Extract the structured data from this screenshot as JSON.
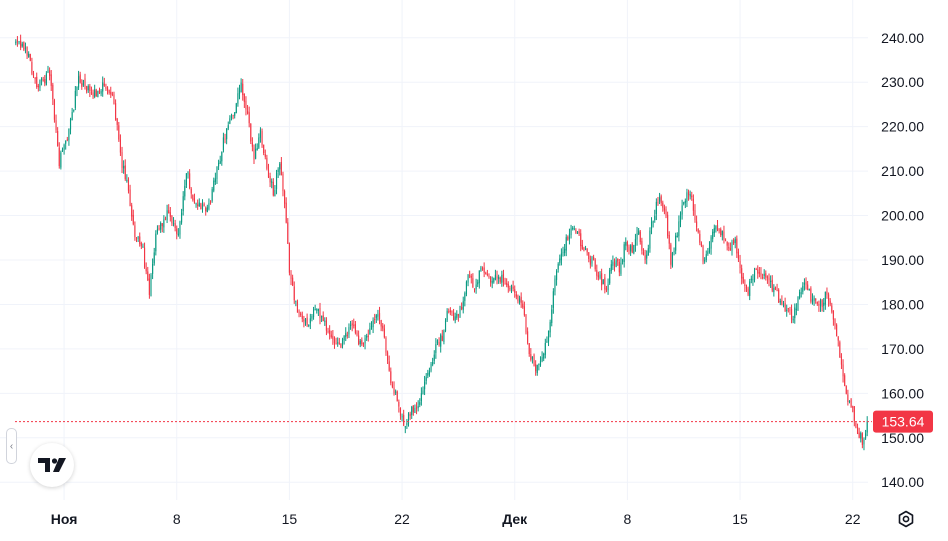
{
  "chart_data": {
    "type": "candlestick",
    "title": "",
    "y_axis": {
      "side": "right",
      "ylim": [
        136,
        244
      ],
      "ticks": [
        "240.00",
        "230.00",
        "220.00",
        "210.00",
        "200.00",
        "190.00",
        "180.00",
        "170.00",
        "160.00",
        "150.00",
        "140.00"
      ]
    },
    "x_axis": {
      "ticks": [
        {
          "label": "Ноя",
          "index": 30,
          "bold": true
        },
        {
          "label": "8",
          "index": 100,
          "bold": false
        },
        {
          "label": "15",
          "index": 170,
          "bold": false
        },
        {
          "label": "22",
          "index": 240,
          "bold": false
        },
        {
          "label": "Дек",
          "index": 310,
          "bold": true
        },
        {
          "label": "8",
          "index": 380,
          "bold": false
        },
        {
          "label": "15",
          "index": 450,
          "bold": false
        },
        {
          "label": "22",
          "index": 520,
          "bold": false
        }
      ]
    },
    "bar_count": 530,
    "close_path": [
      [
        0,
        239
      ],
      [
        8,
        237
      ],
      [
        14,
        229
      ],
      [
        22,
        232
      ],
      [
        28,
        212
      ],
      [
        34,
        219
      ],
      [
        40,
        231
      ],
      [
        48,
        227
      ],
      [
        55,
        229
      ],
      [
        62,
        226
      ],
      [
        66,
        213
      ],
      [
        70,
        207
      ],
      [
        75,
        196
      ],
      [
        80,
        192
      ],
      [
        84,
        182
      ],
      [
        88,
        196
      ],
      [
        95,
        200
      ],
      [
        102,
        196
      ],
      [
        107,
        210
      ],
      [
        112,
        203
      ],
      [
        120,
        201
      ],
      [
        126,
        210
      ],
      [
        132,
        220
      ],
      [
        137,
        224
      ],
      [
        141,
        229
      ],
      [
        145,
        222
      ],
      [
        149,
        213
      ],
      [
        153,
        219
      ],
      [
        157,
        211
      ],
      [
        161,
        205
      ],
      [
        165,
        212
      ],
      [
        168,
        202
      ],
      [
        171,
        188
      ],
      [
        176,
        178
      ],
      [
        182,
        176
      ],
      [
        188,
        179
      ],
      [
        194,
        175
      ],
      [
        200,
        170
      ],
      [
        205,
        172
      ],
      [
        210,
        176
      ],
      [
        215,
        171
      ],
      [
        220,
        173
      ],
      [
        226,
        178
      ],
      [
        230,
        172
      ],
      [
        234,
        163
      ],
      [
        238,
        158
      ],
      [
        242,
        153
      ],
      [
        246,
        156
      ],
      [
        250,
        157
      ],
      [
        254,
        161
      ],
      [
        258,
        166
      ],
      [
        262,
        170
      ],
      [
        266,
        173
      ],
      [
        270,
        179
      ],
      [
        274,
        177
      ],
      [
        278,
        180
      ],
      [
        282,
        187
      ],
      [
        286,
        183
      ],
      [
        290,
        188
      ],
      [
        296,
        185
      ],
      [
        302,
        186
      ],
      [
        308,
        184
      ],
      [
        312,
        182
      ],
      [
        316,
        180
      ],
      [
        320,
        169
      ],
      [
        324,
        166
      ],
      [
        328,
        168
      ],
      [
        332,
        173
      ],
      [
        336,
        185
      ],
      [
        340,
        192
      ],
      [
        344,
        195
      ],
      [
        348,
        198
      ],
      [
        352,
        194
      ],
      [
        356,
        191
      ],
      [
        360,
        189
      ],
      [
        364,
        186
      ],
      [
        368,
        184
      ],
      [
        372,
        190
      ],
      [
        376,
        188
      ],
      [
        380,
        194
      ],
      [
        384,
        192
      ],
      [
        388,
        196
      ],
      [
        392,
        189
      ],
      [
        396,
        198
      ],
      [
        400,
        204
      ],
      [
        404,
        202
      ],
      [
        408,
        190
      ],
      [
        412,
        196
      ],
      [
        416,
        204
      ],
      [
        420,
        205
      ],
      [
        424,
        198
      ],
      [
        428,
        190
      ],
      [
        432,
        194
      ],
      [
        436,
        198
      ],
      [
        440,
        196
      ],
      [
        444,
        192
      ],
      [
        448,
        194
      ],
      [
        452,
        187
      ],
      [
        456,
        183
      ],
      [
        460,
        188
      ],
      [
        464,
        187
      ],
      [
        468,
        186
      ],
      [
        472,
        183
      ],
      [
        476,
        181
      ],
      [
        480,
        178
      ],
      [
        484,
        177
      ],
      [
        488,
        183
      ],
      [
        492,
        184
      ],
      [
        496,
        181
      ],
      [
        500,
        179
      ],
      [
        504,
        182
      ],
      [
        508,
        178
      ],
      [
        512,
        171
      ],
      [
        516,
        161
      ],
      [
        520,
        157
      ],
      [
        524,
        152
      ],
      [
        527,
        149
      ],
      [
        530,
        153.64
      ]
    ],
    "last_price": "153.64",
    "last_price_color": "#f23645",
    "up_color": "#089981",
    "down_color": "#f23645"
  },
  "branding": {
    "logo": "tradingview-logo-icon",
    "text": "TV"
  },
  "controls": {
    "collapse": "chevron-left-icon",
    "settings": "gear-icon",
    "collapse_glyph": "‹"
  }
}
